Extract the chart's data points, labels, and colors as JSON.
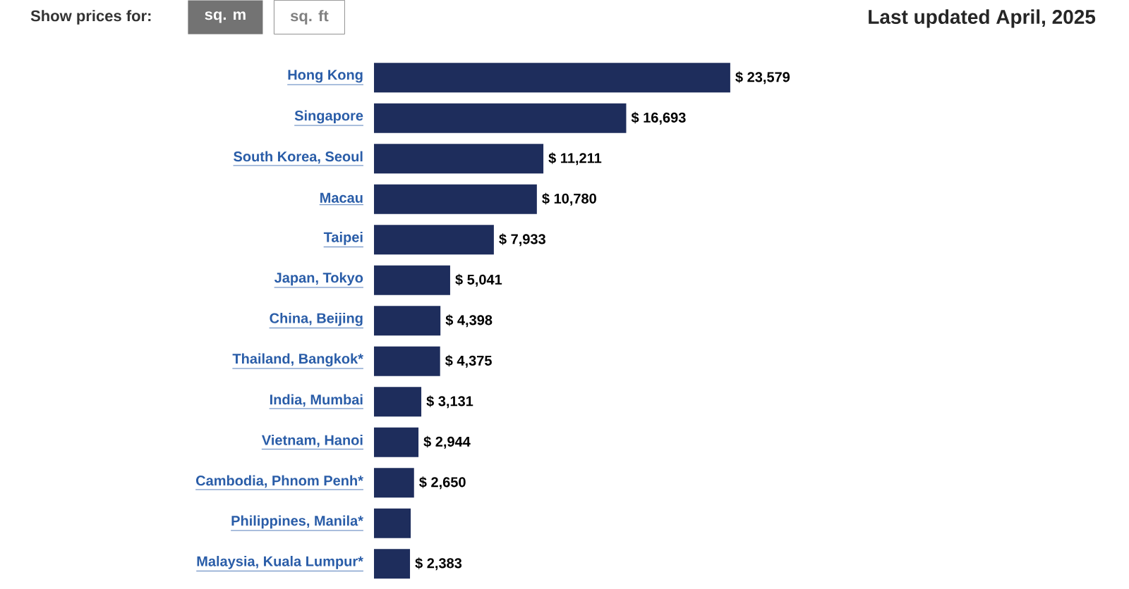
{
  "chart_data": {
    "type": "bar",
    "orientation": "horizontal",
    "categories": [
      "Hong Kong",
      "Singapore",
      "South Korea, Seoul",
      "Macau",
      "Taipei",
      "Japan, Tokyo",
      "China, Beijing",
      "Thailand, Bangkok*",
      "India, Mumbai",
      "Vietnam, Hanoi",
      "Cambodia, Phnom Penh*",
      "Philippines, Manila*",
      "Malaysia, Kuala Lumpur*"
    ],
    "values": [
      23579,
      16693,
      11211,
      10780,
      7933,
      5041,
      4398,
      4375,
      3131,
      2944,
      2650,
      2430,
      2383
    ],
    "value_labels": [
      "$ 23,579",
      "$ 16,693",
      "$ 11,211",
      "$ 10,780",
      "$ 7,933",
      "$ 5,041",
      "$ 4,398",
      "$ 4,375",
      "$ 3,131",
      "$ 2,944",
      "$ 2,650",
      null,
      "$ 2,383"
    ],
    "color": "#1e2d5c",
    "annotations": [
      "Show prices for:",
      "sq. m",
      "sq. ft",
      "Last updated April, 2025"
    ]
  }
}
